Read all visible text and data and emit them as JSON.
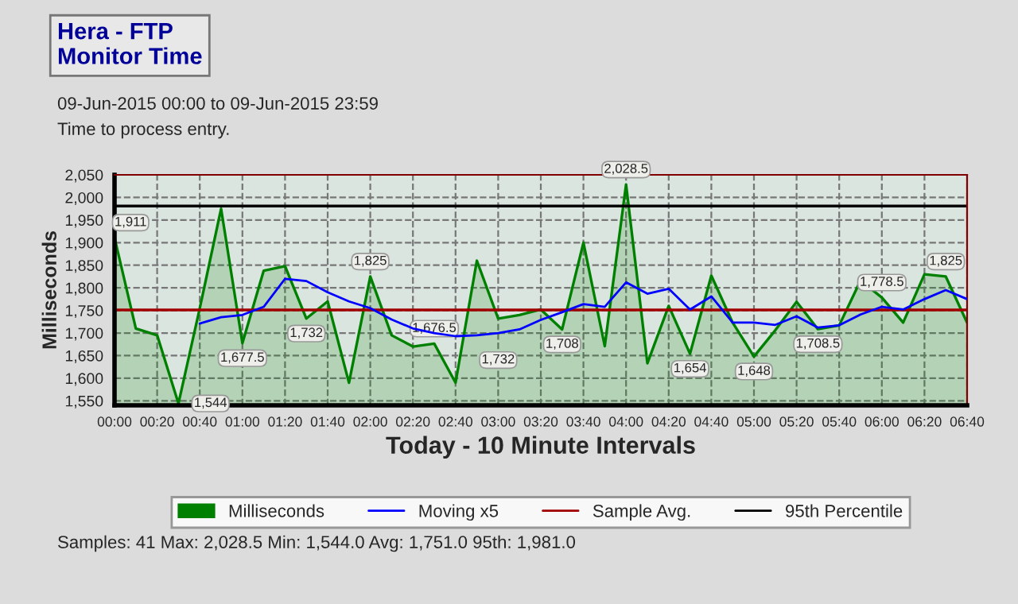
{
  "chart_data": {
    "type": "area",
    "title": "Hera - FTP\nMonitor Time",
    "xlabel": "Today - 10 Minute Intervals",
    "ylabel": "Milliseconds",
    "annotations": [
      "09-Jun-2015 00:00 to 09-Jun-2015 23:59",
      "Time to process entry.",
      "Samples: 41 Max: 2,028.5 Min: 1,544.0 Avg: 1,751.0 95th: 1,981.0"
    ],
    "categories": [
      "00:00",
      null,
      "00:20",
      null,
      "00:40",
      null,
      "01:00",
      null,
      "01:20",
      null,
      "01:40",
      null,
      "02:00",
      null,
      "02:20",
      null,
      "02:40",
      null,
      "03:00",
      null,
      "03:20",
      null,
      "03:40",
      null,
      "04:00",
      null,
      "04:20",
      null,
      "04:40",
      null,
      "05:00",
      null,
      "05:20",
      null,
      "05:40",
      null,
      "06:00",
      null,
      "06:20",
      null,
      "06:40"
    ],
    "series": [
      {
        "name": "Milliseconds",
        "color": "#008000",
        "values": [
          1911,
          1710,
          1695,
          1544,
          1755,
          1975,
          1677.5,
          1838,
          1848,
          1732,
          1770,
          1590,
          1825,
          1695,
          1670,
          1676.5,
          1590,
          1860,
          1732,
          1740,
          1752,
          1708,
          1900,
          1671,
          2028.5,
          1633,
          1760,
          1654,
          1827,
          1723,
          1648,
          1706,
          1769,
          1708.5,
          1717,
          1816,
          1778.5,
          1723,
          1830,
          1825,
          1723
        ],
        "value_labels": [
          "1,911",
          null,
          null,
          "1,544",
          null,
          null,
          "1,677.5",
          null,
          null,
          "1,732",
          null,
          null,
          "1,825",
          null,
          null,
          "1,676.5",
          null,
          null,
          "1,732",
          null,
          null,
          "1,708",
          null,
          null,
          "2,028.5",
          null,
          null,
          "1,654",
          null,
          null,
          "1,648",
          null,
          null,
          "1,708.5",
          null,
          null,
          "1,778.5",
          null,
          null,
          "1,825",
          null
        ]
      },
      {
        "name": "Moving x5",
        "type": "line",
        "color": "#0000ff",
        "values": [
          null,
          null,
          null,
          null,
          1721,
          1735,
          1740,
          1758,
          1820,
          1815,
          1790,
          1770,
          1755,
          1730,
          1710,
          1700,
          1693,
          1695,
          1700,
          1708,
          1729,
          1746,
          1764,
          1758,
          1812,
          1787,
          1798,
          1752,
          1781,
          1723,
          1723,
          1718,
          1737,
          1712,
          1717,
          1741,
          1758,
          1752,
          1775,
          1795,
          1775
        ]
      }
    ],
    "ref_lines": [
      {
        "axis": "y",
        "value": 1751,
        "label": "Sample Avg.",
        "color": "#a00000"
      },
      {
        "axis": "y",
        "value": 1981,
        "label": "95th Percentile",
        "color": "#000000"
      }
    ],
    "ylim": [
      1540,
      2050
    ],
    "yticks": [
      {
        "value": 1550,
        "label": "1,550"
      },
      {
        "value": 1600,
        "label": "1,600"
      },
      {
        "value": 1650,
        "label": "1,650"
      },
      {
        "value": 1700,
        "label": "1,700"
      },
      {
        "value": 1750,
        "label": "1,750"
      },
      {
        "value": 1800,
        "label": "1,800"
      },
      {
        "value": 1850,
        "label": "1,850"
      },
      {
        "value": 1900,
        "label": "1,900"
      },
      {
        "value": 1950,
        "label": "1,950"
      },
      {
        "value": 2000,
        "label": "2,000"
      },
      {
        "value": 2050,
        "label": "2,050"
      }
    ],
    "grid": true,
    "legend": "bottom",
    "line_style": "solid"
  }
}
